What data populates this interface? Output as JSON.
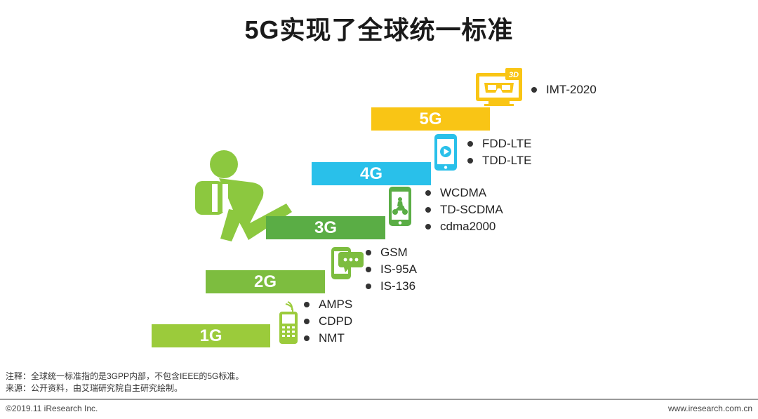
{
  "title": "5G实现了全球统一标准",
  "generations": [
    {
      "label": "1G",
      "color": "#9bcb3b",
      "standards": [
        "AMPS",
        "CDPD",
        "NMT"
      ],
      "icon": "feature-phone-icon"
    },
    {
      "label": "2G",
      "color": "#7dbd3f",
      "standards": [
        "GSM",
        "IS-95A",
        "IS-136"
      ],
      "icon": "chat-phone-icon"
    },
    {
      "label": "3G",
      "color": "#5aad45",
      "standards": [
        "WCDMA",
        "TD-SCDMA",
        "cdma2000"
      ],
      "icon": "smartphone-moto-icon"
    },
    {
      "label": "4G",
      "color": "#29c0ea",
      "standards": [
        "FDD-LTE",
        "TDD-LTE"
      ],
      "icon": "video-phone-icon"
    },
    {
      "label": "5G",
      "color": "#f9c515",
      "standards": [
        "IMT-2020"
      ],
      "icon": "3d-tv-icon"
    }
  ],
  "notes": {
    "note": "注释：全球统一标准指的是3GPP内部，不包含IEEE的5G标准。",
    "source": "来源：公开资料，由艾瑞研究院自主研究绘制。"
  },
  "footer": {
    "copyright": "©2019.11 iResearch Inc.",
    "website": "www.iresearch.com.cn"
  }
}
